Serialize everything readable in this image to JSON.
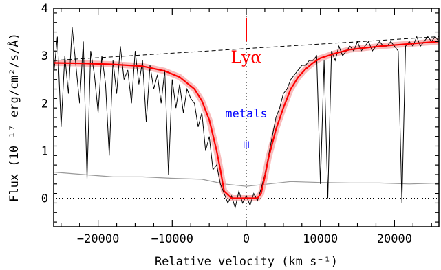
{
  "chart_data": {
    "type": "line",
    "title": "",
    "xlabel": "Relative velocity (km s⁻¹)",
    "ylabel": "Flux (10⁻¹⁷ erg/cm²/s/Å)",
    "xlim": [
      -26000,
      26000
    ],
    "ylim": [
      -0.6,
      4
    ],
    "x_ticks": [
      -20000,
      -10000,
      0,
      10000,
      20000
    ],
    "y_ticks": [
      0,
      1,
      2,
      3,
      4
    ],
    "x_tick_labels": [
      "−20000",
      "−10000",
      "0",
      "10000",
      "20000"
    ],
    "y_tick_labels": [
      "0",
      "1",
      "2",
      "3",
      "4"
    ],
    "grid": false,
    "reference_lines": [
      {
        "type": "horizontal",
        "y": 0,
        "style": "dotted"
      },
      {
        "type": "vertical",
        "x": 0,
        "style": "dotted"
      }
    ],
    "annotations": [
      {
        "text": "Lyα",
        "x": 0,
        "y": 2.85,
        "color": "#ff0000"
      },
      {
        "text": "metals",
        "x": 0,
        "y": 1.7,
        "color": "#0000ff"
      }
    ],
    "series": [
      {
        "role": "continuum",
        "style": "dashed",
        "color": "#000000",
        "x": [
          -26000,
          26000
        ],
        "y": [
          2.9,
          3.4
        ]
      },
      {
        "role": "model",
        "style": "solid",
        "color": "#ff0000",
        "x": [
          -26000,
          -22000,
          -18000,
          -14000,
          -11000,
          -9000,
          -7000,
          -6000,
          -5000,
          -4000,
          -3500,
          -3000,
          -2000,
          0,
          1500,
          2000,
          2500,
          3000,
          4000,
          5000,
          6000,
          7000,
          8000,
          9000,
          10000,
          12000,
          14000,
          18000,
          22000,
          26000
        ],
        "y": [
          2.85,
          2.84,
          2.82,
          2.78,
          2.68,
          2.55,
          2.3,
          2.05,
          1.65,
          1.0,
          0.6,
          0.15,
          0.0,
          0.0,
          0.0,
          0.1,
          0.45,
          0.85,
          1.45,
          1.9,
          2.3,
          2.55,
          2.72,
          2.85,
          2.95,
          3.05,
          3.13,
          3.2,
          3.25,
          3.3
        ]
      },
      {
        "role": "error",
        "style": "solid",
        "color": "#999999",
        "x": [
          -26000,
          -22000,
          -18000,
          -14000,
          -10000,
          -6000,
          -3000,
          0,
          3000,
          6000,
          10000,
          14000,
          18000,
          22000,
          26000
        ],
        "y": [
          0.55,
          0.5,
          0.45,
          0.45,
          0.42,
          0.4,
          0.3,
          0.25,
          0.3,
          0.35,
          0.33,
          0.32,
          0.32,
          0.3,
          0.32
        ]
      },
      {
        "role": "data",
        "style": "solid",
        "color": "#000000",
        "x": [
          -26000,
          -25500,
          -25000,
          -24500,
          -24000,
          -23500,
          -23000,
          -22500,
          -22000,
          -21500,
          -21000,
          -20500,
          -20000,
          -19500,
          -19000,
          -18500,
          -18000,
          -17500,
          -17000,
          -16500,
          -16000,
          -15500,
          -15000,
          -14500,
          -14000,
          -13500,
          -13000,
          -12500,
          -12000,
          -11500,
          -11000,
          -10500,
          -10000,
          -9500,
          -9000,
          -8500,
          -8000,
          -7500,
          -7000,
          -6500,
          -6000,
          -5500,
          -5000,
          -4500,
          -4000,
          -3500,
          -3000,
          -2500,
          -2000,
          -1500,
          -1000,
          -500,
          0,
          500,
          1000,
          1500,
          2000,
          2500,
          3000,
          3500,
          4000,
          4500,
          5000,
          5500,
          6000,
          6500,
          7000,
          7500,
          8000,
          8500,
          9000,
          9500,
          10000,
          10500,
          11000,
          11500,
          12000,
          12500,
          13000,
          13500,
          14000,
          14500,
          15000,
          15500,
          16000,
          16500,
          17000,
          17500,
          18000,
          18500,
          19000,
          19500,
          20000,
          20500,
          21000,
          21500,
          22000,
          22500,
          23000,
          23500,
          24000,
          24500,
          25000,
          25500,
          26000
        ],
        "y": [
          2.6,
          3.4,
          1.5,
          3.0,
          2.2,
          3.6,
          2.8,
          2.0,
          3.3,
          0.4,
          3.1,
          2.6,
          1.8,
          3.0,
          2.4,
          0.9,
          2.9,
          2.2,
          3.2,
          2.5,
          2.7,
          2.0,
          3.1,
          2.4,
          2.9,
          1.6,
          2.8,
          2.3,
          2.6,
          2.0,
          2.7,
          0.5,
          2.5,
          1.9,
          2.4,
          1.8,
          2.3,
          2.1,
          2.0,
          1.5,
          1.8,
          1.0,
          1.3,
          0.6,
          0.7,
          0.3,
          0.1,
          -0.1,
          0.05,
          -0.2,
          0.15,
          -0.1,
          0.05,
          -0.15,
          0.1,
          -0.05,
          0.2,
          0.5,
          0.9,
          1.3,
          1.7,
          1.9,
          2.2,
          2.3,
          2.5,
          2.6,
          2.7,
          2.8,
          2.8,
          2.9,
          2.9,
          3.0,
          0.3,
          2.9,
          0.0,
          3.1,
          2.9,
          3.2,
          3.0,
          3.1,
          3.2,
          3.1,
          3.3,
          3.1,
          3.2,
          3.3,
          3.1,
          3.2,
          3.3,
          3.2,
          3.2,
          3.3,
          3.2,
          3.1,
          -0.1,
          3.2,
          3.3,
          3.2,
          3.4,
          3.2,
          3.3,
          3.4,
          3.3,
          3.4,
          3.3
        ]
      }
    ]
  }
}
